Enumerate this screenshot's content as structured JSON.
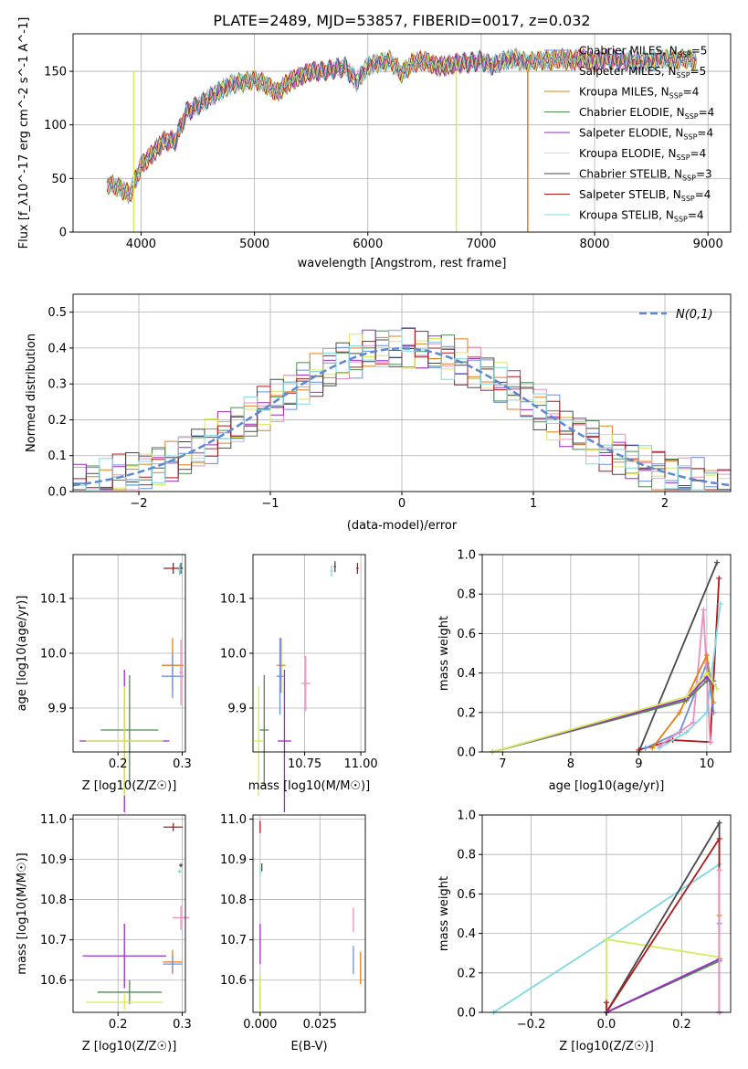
{
  "title": "PLATE=2489, MJD=53857, FIBERID=0017, z=0.032",
  "colors": {
    "Chabrier MILES": "#6c8fe0",
    "Salpeter MILES": "#ea8fc0",
    "Kroupa MILES": "#e07f1a",
    "Chabrier ELODIE": "#4f8a4f",
    "Salpeter ELODIE": "#9b2fc0",
    "Kroupa ELODIE": "#d7ea5a",
    "Chabrier STELIB": "#4a4a4a",
    "Salpeter STELIB": "#b01818",
    "Kroupa STELIB": "#7fd8e2",
    "gaussian": "#5b88d4",
    "grid": "#b0b0b0"
  },
  "legend1": [
    {
      "label": "Chabrier MILES, N",
      "nssp": "5",
      "key": "Chabrier MILES"
    },
    {
      "label": "Salpeter MILES, N",
      "nssp": "5",
      "key": "Salpeter MILES"
    },
    {
      "label": "Kroupa MILES, N",
      "nssp": "4",
      "key": "Kroupa MILES"
    },
    {
      "label": "Chabrier ELODIE, N",
      "nssp": "4",
      "key": "Chabrier ELODIE"
    },
    {
      "label": "Salpeter ELODIE, N",
      "nssp": "4",
      "key": "Salpeter ELODIE"
    },
    {
      "label": "Kroupa ELODIE, N",
      "nssp": "4",
      "key": "Kroupa ELODIE"
    },
    {
      "label": "Chabrier STELIB, N",
      "nssp": "3",
      "key": "Chabrier STELIB"
    },
    {
      "label": "Salpeter STELIB, N",
      "nssp": "4",
      "key": "Salpeter STELIB"
    },
    {
      "label": "Kroupa STELIB, N",
      "nssp": "4",
      "key": "Kroupa STELIB"
    }
  ],
  "chart_data": [
    {
      "type": "line",
      "panel": "spectrum",
      "xlabel": "wavelength [Angstrom, rest frame]",
      "ylabel": "Flux [f_λ10^-17 erg cm^-2 s^-1 A^-1]",
      "xlim": [
        3400,
        9200
      ],
      "ylim": [
        0,
        185
      ],
      "xticks": [
        4000,
        5000,
        6000,
        7000,
        8000,
        9000
      ],
      "yticks": [
        0,
        50,
        100,
        150
      ],
      "x": [
        3700,
        3800,
        3900,
        4000,
        4100,
        4200,
        4300,
        4400,
        4500,
        4600,
        4700,
        4800,
        4900,
        5000,
        5100,
        5200,
        5300,
        5400,
        5500,
        5600,
        5700,
        5800,
        5900,
        6000,
        6100,
        6200,
        6300,
        6400,
        6500,
        6600,
        6700,
        6800,
        6900,
        7000,
        7100,
        7200,
        7300,
        7400,
        7500,
        7600,
        7700,
        7800,
        7900,
        8000,
        8100,
        8200,
        8300,
        8400,
        8500,
        8600,
        8700,
        8800,
        8900
      ],
      "y": [
        45,
        42,
        35,
        62,
        73,
        85,
        85,
        112,
        118,
        125,
        132,
        138,
        140,
        142,
        138,
        130,
        140,
        145,
        150,
        150,
        152,
        154,
        140,
        155,
        158,
        160,
        148,
        158,
        160,
        155,
        155,
        158,
        158,
        160,
        155,
        160,
        162,
        158,
        160,
        160,
        162,
        160,
        162,
        158,
        162,
        160,
        160,
        158,
        160,
        162,
        160,
        162,
        160
      ],
      "dips": [
        {
          "x": 3935,
          "key": "Kroupa ELODIE"
        },
        {
          "x": 6780,
          "key": "Kroupa ELODIE"
        },
        {
          "x": 7410,
          "key": "Kroupa MILES"
        }
      ]
    },
    {
      "type": "histogram",
      "panel": "residuals",
      "xlabel": "(data-model)/error",
      "ylabel": "Normed distribution",
      "xlim": [
        -2.5,
        2.5
      ],
      "ylim": [
        0,
        0.55
      ],
      "xticks": [
        -2,
        -1,
        0,
        1,
        2
      ],
      "yticks": [
        0.0,
        0.1,
        0.2,
        0.3,
        0.4,
        0.5
      ],
      "bin_width": 0.1,
      "legend": "N(0,1)"
    },
    {
      "type": "scatter",
      "panel": "age-vs-Z",
      "xlabel": "Z [log10(Z/Z☉)]",
      "ylabel": "age  [log10(age/yr)]",
      "xlim": [
        0.13,
        0.305
      ],
      "ylim": [
        9.82,
        10.18
      ],
      "xticks": [
        0.2,
        0.3
      ],
      "yticks": [
        9.9,
        10.0,
        10.1
      ],
      "points": [
        {
          "key": "Salpeter STELIB",
          "x": 0.286,
          "y": 10.155,
          "xerr": 0.015,
          "yerr": 0.01
        },
        {
          "key": "Chabrier STELIB",
          "x": 0.298,
          "y": 10.155,
          "xerr": 0.003,
          "yerr": 0.01
        },
        {
          "key": "Kroupa STELIB",
          "x": 0.296,
          "y": 10.152,
          "xerr": 0.003,
          "yerr": 0.01
        },
        {
          "key": "Kroupa MILES",
          "x": 0.285,
          "y": 9.978,
          "xerr": 0.017,
          "yerr": 0.05
        },
        {
          "key": "Chabrier MILES",
          "x": 0.285,
          "y": 9.958,
          "xerr": 0.017,
          "yerr": 0.04
        },
        {
          "key": "Salpeter MILES",
          "x": 0.298,
          "y": 9.965,
          "xerr": 0.003,
          "yerr": 0.06
        },
        {
          "key": "Chabrier ELODIE",
          "x": 0.218,
          "y": 9.86,
          "xerr": 0.045,
          "yerr": 0.1
        },
        {
          "key": "Salpeter ELODIE",
          "x": 0.21,
          "y": 9.84,
          "xerr": 0.07,
          "yerr": 0.13
        },
        {
          "key": "Kroupa ELODIE",
          "x": 0.21,
          "y": 9.84,
          "xerr": 0.06,
          "yerr": 0.1
        }
      ]
    },
    {
      "type": "scatter",
      "panel": "age-vs-mass",
      "xlabel": "mass [log10(M/M☉)]",
      "ylabel": "",
      "xlim": [
        10.52,
        11.02
      ],
      "ylim": [
        9.82,
        10.18
      ],
      "xticks": [
        10.75,
        11.0
      ],
      "yticks": [
        9.9,
        10.0,
        10.1
      ],
      "points": [
        {
          "key": "Salpeter STELIB",
          "x": 10.985,
          "y": 10.155,
          "xerr": 0.005,
          "yerr": 0.01
        },
        {
          "key": "Chabrier STELIB",
          "x": 10.885,
          "y": 10.158,
          "xerr": 0.005,
          "yerr": 0.01
        },
        {
          "key": "Kroupa STELIB",
          "x": 10.87,
          "y": 10.15,
          "xerr": 0.005,
          "yerr": 0.01
        },
        {
          "key": "Kroupa MILES",
          "x": 10.645,
          "y": 9.978,
          "xerr": 0.02,
          "yerr": 0.05
        },
        {
          "key": "Chabrier MILES",
          "x": 10.64,
          "y": 9.958,
          "xerr": 0.015,
          "yerr": 0.07
        },
        {
          "key": "Salpeter MILES",
          "x": 10.755,
          "y": 9.945,
          "xerr": 0.02,
          "yerr": 0.05
        },
        {
          "key": "Chabrier ELODIE",
          "x": 10.57,
          "y": 9.86,
          "xerr": 0.02,
          "yerr": 0.1
        },
        {
          "key": "Salpeter ELODIE",
          "x": 10.66,
          "y": 9.84,
          "xerr": 0.03,
          "yerr": 0.13
        },
        {
          "key": "Kroupa ELODIE",
          "x": 10.545,
          "y": 9.84,
          "xerr": 0.02,
          "yerr": 0.1
        }
      ]
    },
    {
      "type": "line",
      "panel": "mass-weight-vs-age",
      "xlabel": "age  [log10(age/yr)]",
      "ylabel": "mass weight",
      "xlim": [
        6.7,
        10.35
      ],
      "ylim": [
        0,
        1
      ],
      "xticks": [
        7,
        8,
        9,
        10
      ],
      "yticks": [
        0.0,
        0.2,
        0.4,
        0.6,
        0.8,
        1.0
      ],
      "series": [
        {
          "key": "Chabrier STELIB",
          "x": [
            9.0,
            10.15
          ],
          "y": [
            0.0,
            0.96
          ]
        },
        {
          "key": "Salpeter STELIB",
          "x": [
            9.0,
            9.5,
            10.05,
            10.18
          ],
          "y": [
            0.01,
            0.06,
            0.05,
            0.88
          ]
        },
        {
          "key": "Kroupa STELIB",
          "x": [
            9.3,
            9.7,
            10.0,
            10.2
          ],
          "y": [
            0.02,
            0.1,
            0.2,
            0.75
          ]
        },
        {
          "key": "Chabrier MILES",
          "x": [
            9.1,
            9.6,
            10.0,
            10.1
          ],
          "y": [
            0.02,
            0.1,
            0.45,
            0.2
          ]
        },
        {
          "key": "Salpeter MILES",
          "x": [
            9.3,
            9.8,
            9.95,
            10.05
          ],
          "y": [
            0.03,
            0.15,
            0.72,
            0.05
          ]
        },
        {
          "key": "Kroupa MILES",
          "x": [
            9.2,
            9.6,
            10.0,
            10.1
          ],
          "y": [
            0.02,
            0.2,
            0.49,
            0.25
          ]
        },
        {
          "key": "Chabrier ELODIE",
          "x": [
            6.85,
            9.7,
            10.0,
            10.1
          ],
          "y": [
            0.0,
            0.26,
            0.36,
            0.36
          ]
        },
        {
          "key": "Salpeter ELODIE",
          "x": [
            6.85,
            9.7,
            10.0,
            10.1
          ],
          "y": [
            0.0,
            0.27,
            0.38,
            0.34
          ]
        },
        {
          "key": "Kroupa ELODIE",
          "x": [
            6.85,
            9.7,
            10.0,
            10.15
          ],
          "y": [
            0.0,
            0.28,
            0.4,
            0.32
          ]
        }
      ]
    },
    {
      "type": "scatter",
      "panel": "mass-vs-Z",
      "xlabel": "Z [log10(Z/Z☉)]",
      "ylabel": "mass [log10(M/M☉)]",
      "xlim": [
        0.13,
        0.305
      ],
      "ylim": [
        10.52,
        11.01
      ],
      "xticks": [
        0.2,
        0.3
      ],
      "yticks": [
        10.6,
        10.7,
        10.8,
        10.9,
        11.0
      ],
      "points": [
        {
          "key": "Salpeter STELIB",
          "x": 0.286,
          "y": 10.98,
          "xerr": 0.015,
          "yerr": 0.01
        },
        {
          "key": "Chabrier STELIB",
          "x": 0.298,
          "y": 10.885,
          "xerr": 0.003,
          "yerr": 0.005
        },
        {
          "key": "Kroupa STELIB",
          "x": 0.296,
          "y": 10.87,
          "xerr": 0.003,
          "yerr": 0.005
        },
        {
          "key": "Salpeter MILES",
          "x": 0.298,
          "y": 10.755,
          "xerr": 0.013,
          "yerr": 0.03
        },
        {
          "key": "Kroupa MILES",
          "x": 0.285,
          "y": 10.645,
          "xerr": 0.015,
          "yerr": 0.03
        },
        {
          "key": "Chabrier MILES",
          "x": 0.285,
          "y": 10.64,
          "xerr": 0.015,
          "yerr": 0.02
        },
        {
          "key": "Salpeter ELODIE",
          "x": 0.21,
          "y": 10.66,
          "xerr": 0.065,
          "yerr": 0.08
        },
        {
          "key": "Chabrier ELODIE",
          "x": 0.218,
          "y": 10.57,
          "xerr": 0.05,
          "yerr": 0.03
        },
        {
          "key": "Kroupa ELODIE",
          "x": 0.21,
          "y": 10.545,
          "xerr": 0.06,
          "yerr": 0.02
        }
      ]
    },
    {
      "type": "scatter",
      "panel": "mass-vs-EBV",
      "xlabel": "E(B-V)",
      "ylabel": "",
      "xlim": [
        -0.003,
        0.044
      ],
      "ylim": [
        10.52,
        11.01
      ],
      "xticks": [
        0.0,
        0.025
      ],
      "yticks": [
        10.6,
        10.7,
        10.8,
        10.9,
        11.0
      ],
      "points": [
        {
          "key": "Salpeter STELIB",
          "x": 0.0,
          "y": 10.98,
          "yerr": 0.015
        },
        {
          "key": "Chabrier STELIB",
          "x": 0.0007,
          "y": 10.88,
          "yerr": 0.01
        },
        {
          "key": "Kroupa STELIB",
          "x": 0.0,
          "y": 10.87,
          "yerr": 0.01
        },
        {
          "key": "Salpeter ELODIE",
          "x": 0.0,
          "y": 10.69,
          "yerr": 0.05
        },
        {
          "key": "Chabrier ELODIE",
          "x": 0.0,
          "y": 10.57,
          "yerr": 0.04
        },
        {
          "key": "Kroupa ELODIE",
          "x": 0.0,
          "y": 10.56,
          "yerr": 0.05
        },
        {
          "key": "Salpeter MILES",
          "x": 0.039,
          "y": 10.75,
          "yerr": 0.03
        },
        {
          "key": "Chabrier MILES",
          "x": 0.039,
          "y": 10.65,
          "yerr": 0.035
        },
        {
          "key": "Kroupa MILES",
          "x": 0.042,
          "y": 10.63,
          "yerr": 0.04
        }
      ]
    },
    {
      "type": "line",
      "panel": "mass-weight-vs-Z",
      "xlabel": "Z [log10(Z/Z☉)]",
      "ylabel": "mass weight",
      "xlim": [
        -0.33,
        0.33
      ],
      "ylim": [
        0,
        1
      ],
      "xticks": [
        -0.2,
        0.0,
        0.2
      ],
      "yticks": [
        0.0,
        0.2,
        0.4,
        0.6,
        0.8,
        1.0
      ],
      "series": [
        {
          "key": "Kroupa STELIB",
          "x": [
            -0.3,
            0.0,
            0.3,
            0.3
          ],
          "y": [
            0.0,
            0.37,
            0.75,
            0.0
          ]
        },
        {
          "key": "Kroupa ELODIE",
          "x": [
            0.0,
            0.0,
            0.3,
            0.3
          ],
          "y": [
            0.0,
            0.37,
            0.28,
            0.0
          ]
        },
        {
          "key": "Chabrier STELIB",
          "x": [
            0.0,
            0.3,
            0.3
          ],
          "y": [
            0.0,
            0.96,
            0.0
          ]
        },
        {
          "key": "Salpeter STELIB",
          "x": [
            0.0,
            0.0,
            0.3,
            0.3
          ],
          "y": [
            0.05,
            0.0,
            0.88,
            0.0
          ]
        },
        {
          "key": "Chabrier ELODIE",
          "x": [
            0.0,
            0.3,
            0.3
          ],
          "y": [
            0.0,
            0.26,
            0.0
          ]
        },
        {
          "key": "Salpeter ELODIE",
          "x": [
            0.0,
            0.3,
            0.3
          ],
          "y": [
            0.0,
            0.27,
            0.0
          ]
        },
        {
          "key": "Kroupa MILES",
          "x": [
            0.3,
            0.3
          ],
          "y": [
            0.0,
            0.49
          ]
        },
        {
          "key": "Chabrier MILES",
          "x": [
            0.3,
            0.3
          ],
          "y": [
            0.0,
            0.45
          ]
        },
        {
          "key": "Salpeter MILES",
          "x": [
            0.3,
            0.3
          ],
          "y": [
            0.0,
            0.72
          ]
        }
      ]
    }
  ]
}
